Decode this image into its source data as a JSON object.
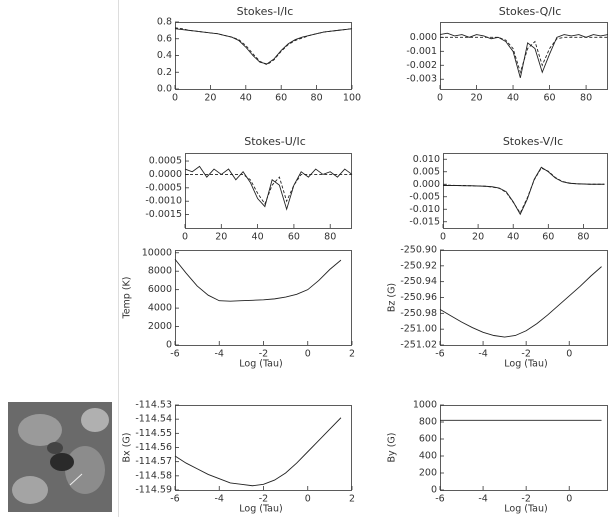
{
  "chart_data": [
    {
      "type": "line",
      "title": "Stokes-I/Ic",
      "x": [
        0,
        4,
        8,
        12,
        16,
        20,
        24,
        28,
        32,
        36,
        40,
        44,
        48,
        52,
        56,
        60,
        64,
        68,
        72,
        76,
        80,
        84,
        88,
        92,
        96,
        100
      ],
      "series": [
        {
          "color": "#222",
          "values": [
            0.72,
            0.71,
            0.7,
            0.69,
            0.68,
            0.67,
            0.66,
            0.64,
            0.62,
            0.58,
            0.5,
            0.4,
            0.32,
            0.3,
            0.36,
            0.46,
            0.54,
            0.59,
            0.62,
            0.64,
            0.66,
            0.68,
            0.69,
            0.7,
            0.71,
            0.72
          ]
        },
        {
          "color": "#222",
          "dash": true,
          "values": [
            0.73,
            0.72,
            0.7,
            0.69,
            0.68,
            0.67,
            0.66,
            0.64,
            0.62,
            0.59,
            0.52,
            0.42,
            0.33,
            0.29,
            0.35,
            0.45,
            0.53,
            0.58,
            0.61,
            0.64,
            0.66,
            0.68,
            0.69,
            0.7,
            0.71,
            0.72
          ]
        }
      ],
      "xlim": [
        0,
        100
      ],
      "xticks": [
        0,
        20,
        40,
        60,
        80,
        100
      ],
      "ylim": [
        0,
        0.8
      ],
      "yticks": [
        {
          "value": 0,
          "label": "0.0"
        },
        0.2,
        0.4,
        0.6,
        0.8
      ]
    },
    {
      "type": "line",
      "title": "Stokes-Q/Ic",
      "x": [
        0,
        4,
        8,
        12,
        16,
        20,
        24,
        28,
        32,
        36,
        40,
        44,
        48,
        52,
        56,
        60,
        64,
        68,
        72,
        76,
        80,
        84,
        88,
        92
      ],
      "series": [
        {
          "color": "#222",
          "values": [
            0.0002,
            0.0003,
            0.0001,
            0.0002,
            0.0,
            0.0002,
            0.0001,
            -0.0001,
            0.0,
            -0.0003,
            -0.001,
            -0.0029,
            -0.0004,
            -0.0008,
            -0.0025,
            -0.0012,
            0.0,
            0.0002,
            0.0001,
            0.0002,
            0.0,
            0.0002,
            0.0001,
            0.0002
          ]
        },
        {
          "color": "#222",
          "dash": true,
          "values": [
            0,
            0,
            0,
            0,
            0,
            0,
            0,
            0,
            0,
            -0.0002,
            -0.0008,
            -0.0025,
            -0.0008,
            -0.0003,
            -0.002,
            -0.0008,
            -0.0001,
            0,
            0,
            0,
            0,
            0,
            0,
            0
          ]
        }
      ],
      "xlim": [
        0,
        92
      ],
      "xticks": [
        0,
        20,
        40,
        60,
        80
      ],
      "ylim": [
        -0.0037,
        0.0011
      ],
      "yticks": [
        {
          "value": 0,
          "label": "0.000"
        },
        -0.001,
        -0.002,
        -0.003
      ]
    },
    {
      "type": "line",
      "title": "Stokes-U/Ic",
      "x": [
        0,
        4,
        8,
        12,
        16,
        20,
        24,
        28,
        32,
        36,
        40,
        44,
        48,
        52,
        56,
        60,
        64,
        68,
        72,
        76,
        80,
        84,
        88,
        92
      ],
      "series": [
        {
          "color": "#222",
          "values": [
            0.0002,
            0.0001,
            0.0003,
            -0.0001,
            0.0002,
            0.0,
            0.0002,
            -0.0002,
            0.0001,
            -0.0003,
            -0.0009,
            -0.0012,
            -0.0002,
            -0.0004,
            -0.0013,
            -0.0004,
            0.0001,
            -0.0001,
            0.0002,
            0.0,
            0.0001,
            -0.0001,
            0.0002,
            0.0
          ]
        },
        {
          "color": "#222",
          "dash": true,
          "values": [
            0,
            0,
            0,
            0,
            0,
            0,
            0,
            0,
            0,
            -0.0002,
            -0.0007,
            -0.0011,
            -0.0004,
            -0.0001,
            -0.001,
            -0.0004,
            0,
            0,
            0,
            0,
            0,
            0,
            0,
            0
          ]
        }
      ],
      "xlim": [
        0,
        92
      ],
      "xticks": [
        0,
        20,
        40,
        60,
        80
      ],
      "ylim": [
        -0.002,
        0.0008
      ],
      "yticks": [
        0.0005,
        {
          "value": 0,
          "label": "0.0000"
        },
        -0.0005,
        {
          "value": -0.001,
          "label": "-0.0010"
        },
        -0.0015
      ]
    },
    {
      "type": "line",
      "title": "Stokes-V/Ic",
      "x": [
        0,
        4,
        8,
        12,
        16,
        20,
        24,
        28,
        32,
        36,
        40,
        44,
        48,
        52,
        56,
        60,
        64,
        68,
        72,
        76,
        80,
        84,
        88,
        92
      ],
      "series": [
        {
          "color": "#222",
          "values": [
            -0.0005,
            -0.0005,
            -0.0005,
            -0.0006,
            -0.0006,
            -0.0007,
            -0.0008,
            -0.001,
            -0.0015,
            -0.003,
            -0.007,
            -0.012,
            -0.006,
            0.002,
            0.0068,
            0.005,
            0.0025,
            0.001,
            0.0004,
            0.0002,
            0.0001,
            0.0,
            0.0,
            0.0
          ]
        },
        {
          "color": "#222",
          "dash": true,
          "values": [
            -0.0004,
            -0.0004,
            -0.0005,
            -0.0005,
            -0.0006,
            -0.0007,
            -0.0008,
            -0.0011,
            -0.0016,
            -0.0032,
            -0.0072,
            -0.0115,
            -0.0055,
            0.0018,
            0.0065,
            0.0052,
            0.0027,
            0.0011,
            0.0005,
            0.0002,
            0.0001,
            0.0,
            0.0,
            0.0
          ]
        }
      ],
      "xlim": [
        0,
        94
      ],
      "xticks": [
        0,
        20,
        40,
        60,
        80
      ],
      "ylim": [
        -0.0175,
        0.0125
      ],
      "yticks": [
        {
          "value": 0.01,
          "label": "0.010"
        },
        0.005,
        {
          "value": 0,
          "label": "0.000"
        },
        -0.005,
        {
          "value": -0.01,
          "label": "-0.010"
        },
        -0.015
      ]
    },
    {
      "type": "line",
      "xlabel": "Log (Tau)",
      "ylabel": "Temp (K)",
      "x": [
        -6,
        -5.5,
        -5,
        -4.5,
        -4,
        -3.5,
        -3,
        -2.5,
        -2,
        -1.5,
        -1,
        -0.5,
        0,
        0.5,
        1,
        1.5
      ],
      "series": [
        {
          "color": "#222",
          "values": [
            9300,
            7800,
            6400,
            5400,
            4800,
            4750,
            4800,
            4850,
            4900,
            5000,
            5200,
            5500,
            6000,
            7000,
            8200,
            9200
          ]
        }
      ],
      "xlim": [
        -6,
        2
      ],
      "xticks": [
        -6,
        -4,
        -2,
        0,
        2
      ],
      "ylim": [
        0,
        10300
      ],
      "yticks": [
        0,
        2000,
        4000,
        6000,
        8000,
        10000
      ]
    },
    {
      "type": "line",
      "xlabel": "Log (Tau)",
      "ylabel": "Bz (G)",
      "x": [
        -6,
        -5.5,
        -5,
        -4.5,
        -4,
        -3.5,
        -3,
        -2.5,
        -2,
        -1.5,
        -1,
        -0.5,
        0,
        0.5,
        1,
        1.5
      ],
      "series": [
        {
          "color": "#222",
          "values": [
            -250.975,
            -250.983,
            -250.991,
            -250.998,
            -251.004,
            -251.008,
            -251.01,
            -251.008,
            -251.002,
            -250.993,
            -250.982,
            -250.97,
            -250.958,
            -250.946,
            -250.933,
            -250.921
          ]
        }
      ],
      "xlim": [
        -6,
        1.8
      ],
      "xticks": [
        -6,
        -4,
        -2,
        0
      ],
      "ylim": [
        -251.02,
        -250.9
      ],
      "yticks": [
        {
          "value": -250.9,
          "label": "-250.90"
        },
        -250.92,
        -250.94,
        -250.96,
        -250.98,
        {
          "value": -251,
          "label": "-251.00"
        },
        -251.02
      ]
    },
    {
      "type": "line",
      "xlabel": "Log (Tau)",
      "ylabel": "Bx (G)",
      "x": [
        -6,
        -5.5,
        -5,
        -4.5,
        -4,
        -3.5,
        -3,
        -2.5,
        -2,
        -1.5,
        -1,
        -0.5,
        0,
        0.5,
        1,
        1.5
      ],
      "series": [
        {
          "color": "#222",
          "values": [
            -114.566,
            -114.571,
            -114.575,
            -114.579,
            -114.582,
            -114.585,
            -114.586,
            -114.587,
            -114.586,
            -114.583,
            -114.578,
            -114.571,
            -114.563,
            -114.555,
            -114.547,
            -114.539
          ]
        }
      ],
      "xlim": [
        -6,
        2
      ],
      "xticks": [
        -6,
        -4,
        -2,
        0,
        2
      ],
      "ylim": [
        -114.59,
        -114.53
      ],
      "yticks": [
        -114.53,
        -114.54,
        -114.55,
        -114.56,
        -114.57,
        -114.58,
        -114.59
      ]
    },
    {
      "type": "line",
      "xlabel": "Log (Tau)",
      "ylabel": "By (G)",
      "x": [
        -6,
        -5.5,
        -5,
        -4.5,
        -4,
        -3.5,
        -3,
        -2.5,
        -2,
        -1.5,
        -1,
        -0.5,
        0,
        0.5,
        1,
        1.5
      ],
      "series": [
        {
          "color": "#222",
          "values": [
            820,
            820,
            820,
            820,
            820,
            820,
            820,
            820,
            820,
            820,
            820,
            820,
            820,
            820,
            820,
            820
          ]
        }
      ],
      "xlim": [
        -6,
        1.8
      ],
      "xticks": [
        -6,
        -4,
        -2,
        0
      ],
      "ylim": [
        0,
        1000
      ],
      "yticks": [
        0,
        200,
        400,
        600,
        800,
        1000
      ]
    }
  ]
}
